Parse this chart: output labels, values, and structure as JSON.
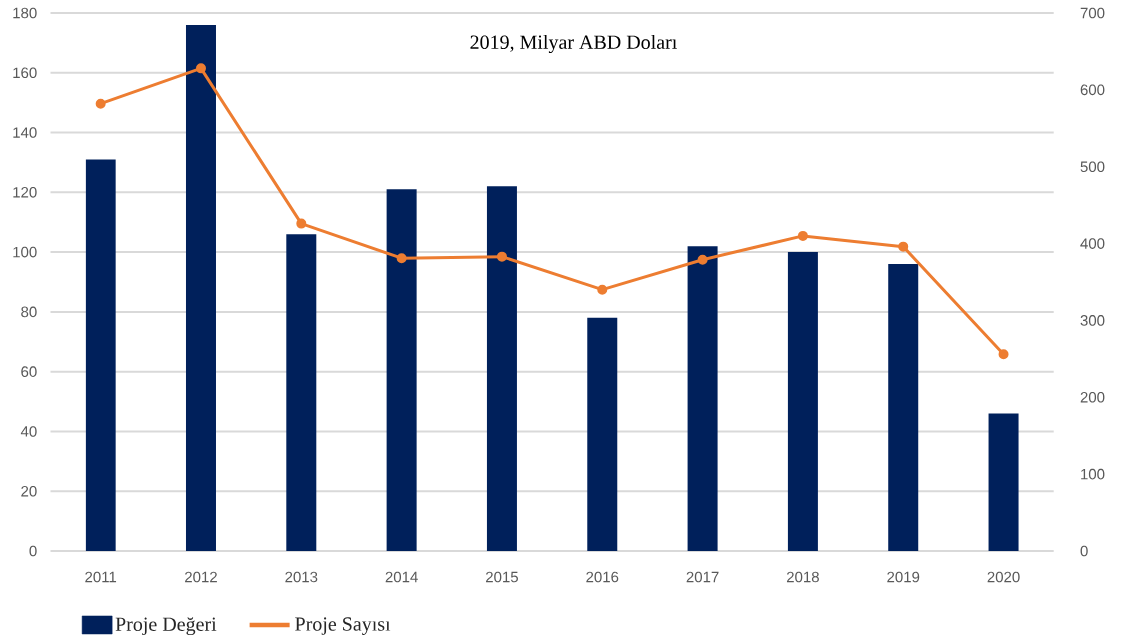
{
  "chart_data": {
    "type": "bar",
    "title": "2019, Milyar ABD Doları",
    "categories": [
      "2011",
      "2012",
      "2013",
      "2014",
      "2015",
      "2016",
      "2017",
      "2018",
      "2019",
      "2020"
    ],
    "series": [
      {
        "name": "Proje Değeri",
        "color": "#00205b",
        "values": [
          131,
          176,
          106,
          121,
          122,
          78,
          102,
          100,
          96,
          46
        ]
      },
      {
        "name": "Proje Sayısı",
        "type": "line",
        "axis": "y2",
        "color": "#ed7d31",
        "marker": "circle",
        "values": [
          582,
          628,
          426,
          381,
          383,
          340,
          379,
          410,
          396,
          256
        ]
      }
    ],
    "ylim": [
      0,
      180
    ],
    "yticks": [
      0,
      20,
      40,
      60,
      80,
      100,
      120,
      140,
      160,
      180
    ],
    "y2lim": [
      0,
      700
    ],
    "y2ticks": [
      0,
      100,
      200,
      300,
      400,
      500,
      600,
      700
    ],
    "grid": "y",
    "legend": "bottom"
  }
}
